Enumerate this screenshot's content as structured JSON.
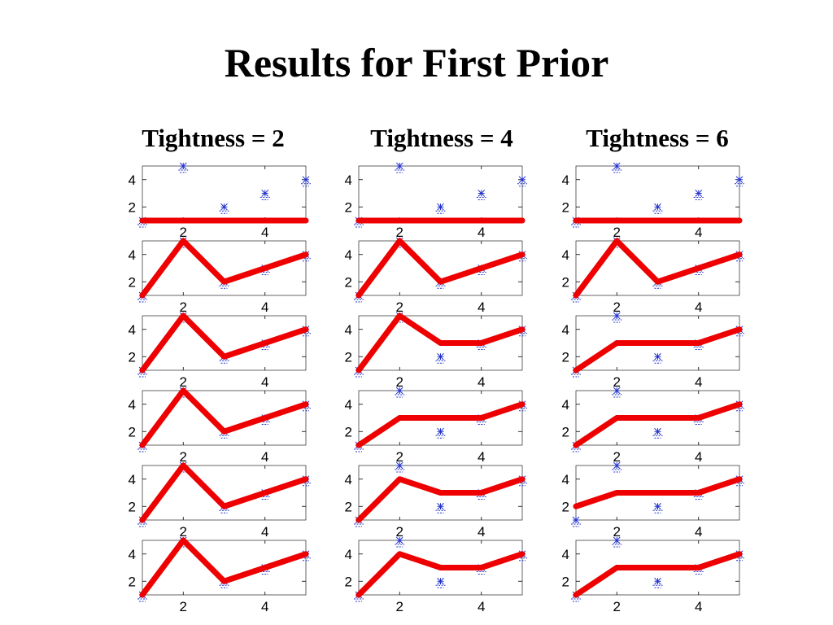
{
  "title": "Results for First Prior",
  "column_titles": [
    "Tightness = 2",
    "Tightness = 4",
    "Tightness = 6"
  ],
  "colors": {
    "fit_line": "#ee0000",
    "data_marker": "#2233cc",
    "axes": "#000000"
  },
  "chart_data": {
    "type": "line",
    "layout": "6 rows x 3 columns of small panels",
    "x": [
      1,
      2,
      3,
      4,
      5
    ],
    "xlim": [
      1,
      5
    ],
    "ylim": [
      1,
      5
    ],
    "xticks": [
      2,
      4
    ],
    "yticks": [
      2,
      4
    ],
    "data_markers": [
      1,
      5,
      2,
      3,
      4
    ],
    "panels": [
      [
        {
          "fit": [
            1,
            1,
            1,
            1,
            1
          ]
        },
        {
          "fit": [
            1,
            1,
            1,
            1,
            1
          ]
        },
        {
          "fit": [
            1,
            1,
            1,
            1,
            1
          ]
        }
      ],
      [
        {
          "fit": [
            1,
            5,
            2,
            3,
            4
          ]
        },
        {
          "fit": [
            1,
            5,
            2,
            3,
            4
          ]
        },
        {
          "fit": [
            1,
            5,
            2,
            3,
            4
          ]
        }
      ],
      [
        {
          "fit": [
            1,
            5,
            2,
            3,
            4
          ]
        },
        {
          "fit": [
            1,
            5,
            3,
            3,
            4
          ]
        },
        {
          "fit": [
            1,
            3,
            3,
            3,
            4
          ]
        }
      ],
      [
        {
          "fit": [
            1,
            5,
            2,
            3,
            4
          ]
        },
        {
          "fit": [
            1,
            3,
            3,
            3,
            4
          ]
        },
        {
          "fit": [
            1,
            3,
            3,
            3,
            4
          ]
        }
      ],
      [
        {
          "fit": [
            1,
            5,
            2,
            3,
            4
          ]
        },
        {
          "fit": [
            1,
            4,
            3,
            3,
            4
          ]
        },
        {
          "fit": [
            2,
            3,
            3,
            3,
            4
          ]
        }
      ],
      [
        {
          "fit": [
            1,
            5,
            2,
            3,
            4
          ]
        },
        {
          "fit": [
            1,
            4,
            3,
            3,
            4
          ]
        },
        {
          "fit": [
            1,
            3,
            3,
            3,
            4
          ]
        }
      ]
    ]
  }
}
